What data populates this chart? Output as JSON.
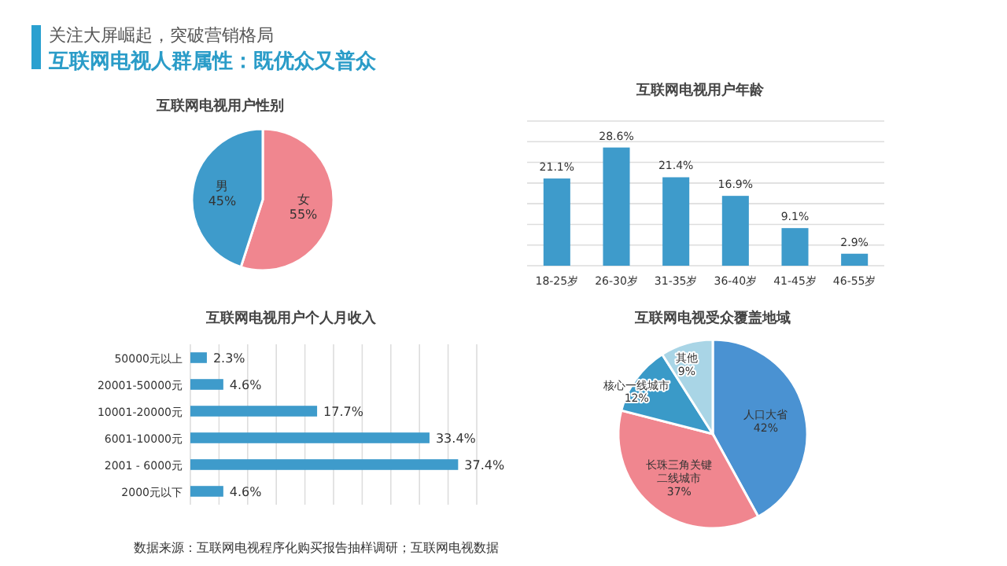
{
  "chart_data": [
    {
      "type": "other",
      "subtitle": "关注大屏崛起，突破营销格局",
      "title": "互联网电视人群属性：既优众又普众",
      "annotations": [
        "数据来源：互联网电视程序化购买报告抽样调研；互联网电视数据"
      ]
    },
    {
      "type": "pie",
      "title": "互联网电视用户性别",
      "categories": [
        "女",
        "男"
      ],
      "values": [
        55,
        45
      ],
      "value_labels": [
        "55%",
        "45%"
      ],
      "colors": [
        "#f0868f",
        "#3e9bcb"
      ]
    },
    {
      "type": "bar",
      "title": "互联网电视用户年龄",
      "categories": [
        "18-25岁",
        "26-30岁",
        "31-35岁",
        "36-40岁",
        "41-45岁",
        "46-55岁"
      ],
      "values": [
        21.1,
        28.6,
        21.4,
        16.9,
        9.1,
        2.9
      ],
      "value_labels": [
        "21.1%",
        "28.6%",
        "21.4%",
        "16.9%",
        "9.1%",
        "2.9%"
      ],
      "color": "#3e9bcb",
      "ylim": [
        0,
        35
      ],
      "yticks": [
        {
          "value": 0,
          "label": null
        },
        {
          "value": 5,
          "label": null
        },
        {
          "value": 10,
          "label": null
        },
        {
          "value": 15,
          "label": null
        },
        {
          "value": 20,
          "label": null
        },
        {
          "value": 25,
          "label": null
        },
        {
          "value": 30,
          "label": null
        },
        {
          "value": 35,
          "label": null
        }
      ],
      "grid": "y",
      "tick_labels": "x"
    },
    {
      "type": "bar",
      "orientation": "horizontal",
      "title": "互联网电视用户个人月收入",
      "categories": [
        "50000元以上",
        "20001-50000元",
        "10001-20000元",
        "6001-10000元",
        "2001 - 6000元",
        "2000元以下"
      ],
      "values": [
        2.3,
        4.6,
        17.7,
        33.4,
        37.4,
        4.6
      ],
      "value_labels": [
        "2.3%",
        "4.6%",
        "17.7%",
        "33.4%",
        "37.4%",
        "4.6%"
      ],
      "color": "#3e9bcb",
      "xlim": [
        0,
        40
      ],
      "xticks": [
        {
          "value": 0,
          "label": null
        },
        {
          "value": 4,
          "label": null
        },
        {
          "value": 8,
          "label": null
        },
        {
          "value": 12,
          "label": null
        },
        {
          "value": 16,
          "label": null
        },
        {
          "value": 20,
          "label": null
        },
        {
          "value": 24,
          "label": null
        },
        {
          "value": 28,
          "label": null
        },
        {
          "value": 32,
          "label": null
        },
        {
          "value": 36,
          "label": null
        },
        {
          "value": 40,
          "label": null
        }
      ],
      "grid": "x",
      "tick_labels": "y"
    },
    {
      "type": "pie",
      "title": "互联网电视受众覆盖地域",
      "categories": [
        "人口大省",
        "长珠三角关键二线城市",
        "核心一线城市",
        "其他"
      ],
      "values": [
        42,
        37,
        12,
        9
      ],
      "value_labels": [
        "42%",
        "37%",
        "12%",
        "9%"
      ],
      "colors": [
        "#4a92d2",
        "#f0868f",
        "#3a9ac8",
        "#a9d5e6"
      ]
    }
  ]
}
